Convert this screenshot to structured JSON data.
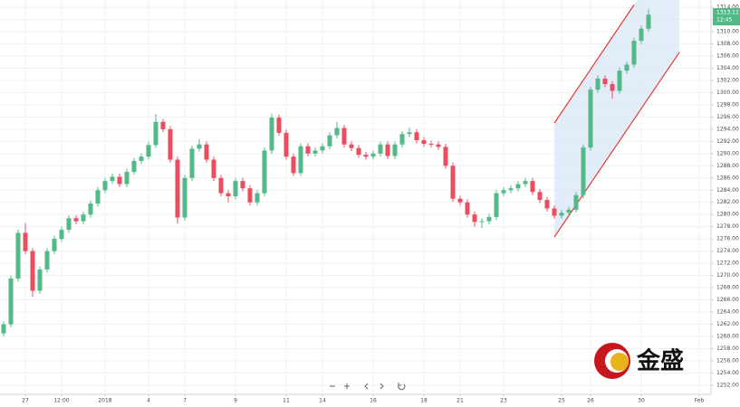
{
  "chart_data": {
    "type": "candlestick",
    "categories": [
      null,
      null,
      null,
      "27",
      null,
      null,
      null,
      null,
      "12:00",
      null,
      null,
      null,
      null,
      null,
      "2018",
      null,
      null,
      null,
      null,
      null,
      "4",
      null,
      null,
      null,
      null,
      "7",
      null,
      null,
      null,
      null,
      null,
      null,
      "9",
      null,
      null,
      null,
      null,
      null,
      null,
      "11",
      null,
      null,
      null,
      null,
      "14",
      null,
      null,
      null,
      null,
      null,
      null,
      "16",
      null,
      null,
      null,
      null,
      null,
      null,
      "18",
      null,
      null,
      null,
      null,
      "21",
      null,
      null,
      null,
      null,
      null,
      "23",
      null,
      null,
      null,
      null,
      null,
      null,
      null,
      "25",
      null,
      null,
      null,
      "26",
      null,
      null,
      null,
      null,
      null,
      null,
      "30",
      null,
      null,
      null,
      null,
      null,
      null,
      null,
      "Feb"
    ],
    "open": [
      1260.5,
      1262,
      1269.5,
      1277,
      1274,
      1267.5,
      1271,
      1274,
      1276,
      1277.5,
      1279.4,
      1278.9,
      1280,
      1281.8,
      1284,
      1285.5,
      1286.2,
      1285,
      1287,
      1288.8,
      1289.5,
      1291.4,
      1295.2,
      1294,
      1289,
      1279.5,
      1286,
      1290.8,
      1291.5,
      1289,
      1286,
      1283.5,
      1283,
      1285.5,
      1284.3,
      1282,
      1283.5,
      1290.5,
      1295.9,
      1293.4,
      1289.5,
      1286.8,
      1291.2,
      1290,
      1290.5,
      1291.2,
      1293,
      1294.2,
      1291.5,
      1290.9,
      1289.8,
      1289.5,
      1290,
      1291.5,
      1289.6,
      1291.5,
      1293.2,
      1293.5,
      1292.2,
      1291.6,
      1291.5,
      1291.1,
      1288,
      1282.6,
      1282,
      1280,
      1278.8,
      1278.9,
      1279.6,
      1283.5,
      1284,
      1284.3,
      1285,
      1285.5,
      1283.7,
      1282.4,
      1281,
      1279.8,
      1280.3,
      1280.8,
      1283.2,
      1291,
      1300.5,
      1302.3,
      1301.4,
      1300.3,
      1303.6,
      1304.6,
      1308.5,
      1310.5,
      null,
      null,
      null,
      null,
      null,
      null,
      null
    ],
    "high": [
      1262.5,
      1270,
      1277.5,
      1278.6,
      1274.5,
      1271.5,
      1274.5,
      1276.5,
      1278,
      1279.9,
      1279.9,
      1280.5,
      1282.3,
      1284.5,
      1286,
      1286.7,
      1286.7,
      1287.5,
      1289.3,
      1290,
      1291.9,
      1296.5,
      1295.7,
      1294.5,
      1289.5,
      1286.5,
      1291.3,
      1292.4,
      1292,
      1289.5,
      1286.5,
      1284,
      1286,
      1286,
      1284.8,
      1284,
      1291,
      1296.6,
      1296.4,
      1293.9,
      1290,
      1291.7,
      1291.7,
      1291,
      1291.7,
      1293.5,
      1295.2,
      1294.7,
      1292,
      1291.4,
      1290.3,
      1290.5,
      1292,
      1292,
      1292,
      1293.7,
      1294.3,
      1294,
      1292.7,
      1292.1,
      1292,
      1291.6,
      1288.5,
      1283.1,
      1282.5,
      1280.5,
      1279.4,
      1280.1,
      1284,
      1284.5,
      1284.8,
      1285.5,
      1286,
      1286,
      1284.2,
      1282.9,
      1281.5,
      1280.8,
      1281.3,
      1283.7,
      1291.5,
      1301,
      1302.8,
      1302.8,
      1301.9,
      1304.1,
      1305.1,
      1309,
      1311,
      1313.7,
      null,
      null,
      null,
      null,
      null,
      null,
      null
    ],
    "low": [
      1260,
      1261.5,
      1269,
      1273.5,
      1266.5,
      1267,
      1270.5,
      1273.5,
      1275.5,
      1277,
      1278.4,
      1278.4,
      1279.5,
      1281.3,
      1283.5,
      1285,
      1284.5,
      1284.5,
      1286.5,
      1288.3,
      1289,
      1290.9,
      1293.5,
      1288.5,
      1278.5,
      1279,
      1285.5,
      1290.3,
      1288.5,
      1285.5,
      1283,
      1282,
      1282.5,
      1283.8,
      1281.5,
      1281.5,
      1283,
      1290,
      1292.9,
      1289,
      1286.3,
      1286.3,
      1289.5,
      1289.5,
      1290,
      1290.7,
      1292.5,
      1291,
      1290.4,
      1289.3,
      1289,
      1289,
      1289.5,
      1289.1,
      1289.1,
      1291,
      1292.7,
      1291.7,
      1291.1,
      1291,
      1290.6,
      1287.5,
      1282.1,
      1281.5,
      1279.5,
      1278,
      1277.8,
      1278.4,
      1279.1,
      1283,
      1283.5,
      1283.8,
      1284.5,
      1283.2,
      1281.9,
      1280.5,
      1279.3,
      1279.3,
      1279.8,
      1280.3,
      1282.7,
      1290.5,
      1300,
      1300.9,
      1299,
      1299.8,
      1303.1,
      1304.1,
      1308,
      1310,
      null,
      null,
      null,
      null,
      null,
      null,
      null
    ],
    "close": [
      1262,
      1269.5,
      1277,
      1274,
      1267.5,
      1271,
      1274,
      1276,
      1277.5,
      1279.4,
      1278.9,
      1280,
      1281.8,
      1284,
      1285.5,
      1286.2,
      1285,
      1287,
      1288.8,
      1289.5,
      1291.4,
      1295.2,
      1294,
      1289,
      1279.5,
      1286,
      1290.8,
      1291.5,
      1289,
      1286,
      1283.5,
      1283,
      1285.5,
      1284.3,
      1282,
      1283.5,
      1290.5,
      1295.9,
      1293.4,
      1289.5,
      1286.8,
      1291.2,
      1290,
      1290.5,
      1291.2,
      1293,
      1294.2,
      1291.5,
      1290.9,
      1289.8,
      1289.5,
      1290,
      1291.5,
      1289.6,
      1291.5,
      1293.2,
      1293.5,
      1292.2,
      1291.6,
      1291.5,
      1291.1,
      1288,
      1282.6,
      1282,
      1280,
      1278.8,
      1278.9,
      1279.6,
      1283.5,
      1284,
      1284.3,
      1285,
      1285.5,
      1283.7,
      1282.4,
      1281,
      1279.8,
      1280.3,
      1280.8,
      1283.2,
      1291,
      1300.5,
      1302.3,
      1301.4,
      1300.3,
      1303.6,
      1304.6,
      1308.5,
      1310.5,
      1312.8,
      null,
      null,
      null,
      null,
      null,
      null,
      null
    ],
    "up_color": "#53b987",
    "down_color": "#eb4d5c",
    "ylim": [
      1250.5,
      1315.2
    ],
    "yticks": [
      {
        "value": 1252,
        "label": "1252.00"
      },
      {
        "value": 1254,
        "label": "1254.00"
      },
      {
        "value": 1256,
        "label": "1256.00"
      },
      {
        "value": 1258,
        "label": "1258.00"
      },
      {
        "value": 1260,
        "label": "1260.00"
      },
      {
        "value": 1262,
        "label": "1262.00"
      },
      {
        "value": 1264,
        "label": "1264.00"
      },
      {
        "value": 1266,
        "label": "1266.00"
      },
      {
        "value": 1268,
        "label": "1268.00"
      },
      {
        "value": 1270,
        "label": "1270.00"
      },
      {
        "value": 1272,
        "label": "1272.00"
      },
      {
        "value": 1274,
        "label": "1274.00"
      },
      {
        "value": 1276,
        "label": "1276.00"
      },
      {
        "value": 1278,
        "label": "1278.00"
      },
      {
        "value": 1280,
        "label": "1280.00"
      },
      {
        "value": 1282,
        "label": "1282.00"
      },
      {
        "value": 1284,
        "label": "1284.00"
      },
      {
        "value": 1286,
        "label": "1286.00"
      },
      {
        "value": 1288,
        "label": "1288.00"
      },
      {
        "value": 1290,
        "label": "1290.00"
      },
      {
        "value": 1292,
        "label": "1292.00"
      },
      {
        "value": 1294,
        "label": "1294.00"
      },
      {
        "value": 1296,
        "label": "1296.00"
      },
      {
        "value": 1298,
        "label": "1298.00"
      },
      {
        "value": 1300,
        "label": "1300.00"
      },
      {
        "value": 1302,
        "label": "1302.00"
      },
      {
        "value": 1304,
        "label": "1304.00"
      },
      {
        "value": 1306,
        "label": "1306.00"
      },
      {
        "value": 1308,
        "label": "1308.00"
      },
      {
        "value": 1310,
        "label": "1310.00"
      },
      {
        "value": 1312,
        "label": "1312.00"
      },
      {
        "value": 1314,
        "label": "1314.00"
      }
    ],
    "grid": true,
    "last_price": 1313.11,
    "last_price_color": "#53b987",
    "countdown": "12:45",
    "channel": {
      "color": "#e53935",
      "fill": "#dce9f7",
      "upper": [
        [
          76,
          1295
        ],
        [
          87,
          1314.4
        ]
      ],
      "lower": [
        [
          76,
          1276.3
        ],
        [
          93.25,
          1306.6
        ]
      ]
    }
  },
  "logo": {
    "text": "金盛"
  }
}
